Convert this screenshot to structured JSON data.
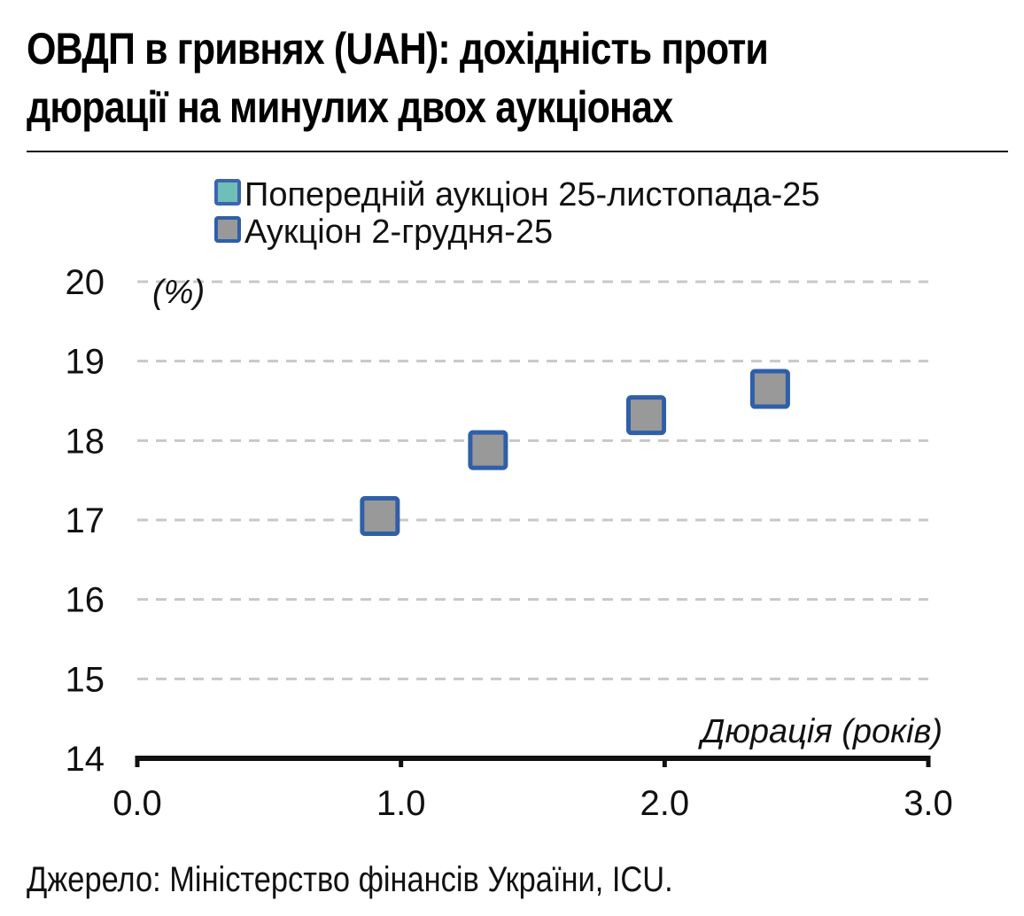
{
  "title_line1": "ОВДП в гривнях (UAH): дохідність проти",
  "title_line2": "дюрації на минулих двох аукціонах",
  "source": "Джерело: Міністерство фінансів України, ICU.",
  "chart_data": {
    "type": "scatter",
    "title": "ОВДП в гривнях (UAH): дохідність проти дюрації на минулих двох аукціонах",
    "xlabel": "Дюрація (років)",
    "ylabel": "(%)",
    "xlim": [
      0.0,
      3.0
    ],
    "ylim": [
      14,
      20
    ],
    "x_ticks": [
      "0.0",
      "1.0",
      "2.0",
      "3.0"
    ],
    "y_ticks": [
      "14",
      "15",
      "16",
      "17",
      "18",
      "19",
      "20"
    ],
    "grid": true,
    "legend_position": "top",
    "series": [
      {
        "name": "Попередній аукціон 25-листопада-25",
        "color": "#6fbfb8",
        "border_color": "#3a66b0",
        "points": []
      },
      {
        "name": "Аукціон 2-грудня-25",
        "color": "#999999",
        "border_color": "#2f5fa8",
        "points": [
          {
            "x": 0.92,
            "y": 17.05
          },
          {
            "x": 1.33,
            "y": 17.88
          },
          {
            "x": 1.93,
            "y": 18.32
          },
          {
            "x": 2.4,
            "y": 18.65
          }
        ]
      }
    ]
  }
}
